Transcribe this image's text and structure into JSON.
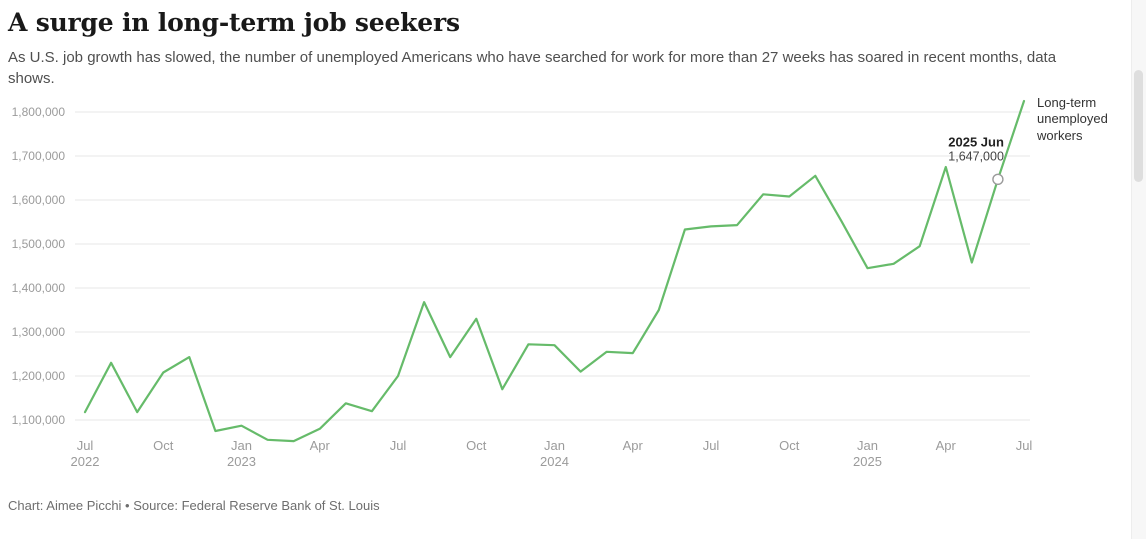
{
  "header": {
    "title": "A surge in long-term job seekers",
    "subtitle": "As U.S. job growth has slowed, the number of unemployed Americans who have searched for work for more than 27 weeks has soared in recent months, data shows."
  },
  "chart_data": {
    "type": "line",
    "title": "A surge in long-term job seekers",
    "series_label": "Long-term unemployed workers",
    "line_color": "#66bb6a",
    "grid_color": "#e7e7e7",
    "axis_label_color": "#9b9b9b",
    "x": [
      "Jul 2022",
      "Aug 2022",
      "Sep 2022",
      "Oct 2022",
      "Nov 2022",
      "Dec 2022",
      "Jan 2023",
      "Feb 2023",
      "Mar 2023",
      "Apr 2023",
      "May 2023",
      "Jun 2023",
      "Jul 2023",
      "Aug 2023",
      "Sep 2023",
      "Oct 2023",
      "Nov 2023",
      "Dec 2023",
      "Jan 2024",
      "Feb 2024",
      "Mar 2024",
      "Apr 2024",
      "May 2024",
      "Jun 2024",
      "Jul 2024",
      "Aug 2024",
      "Sep 2024",
      "Oct 2024",
      "Nov 2024",
      "Dec 2024",
      "Jan 2025",
      "Feb 2025",
      "Mar 2025",
      "Apr 2025",
      "May 2025",
      "Jun 2025",
      "Jul 2025"
    ],
    "values": [
      1118000,
      1230000,
      1118000,
      1208000,
      1243000,
      1075000,
      1087000,
      1055000,
      1052000,
      1080000,
      1138000,
      1120000,
      1200000,
      1368000,
      1243000,
      1330000,
      1170000,
      1272000,
      1270000,
      1210000,
      1255000,
      1252000,
      1350000,
      1533000,
      1540000,
      1543000,
      1613000,
      1608000,
      1655000,
      1552000,
      1445000,
      1455000,
      1495000,
      1675000,
      1458000,
      1647000,
      1825000
    ],
    "yticks": [
      1100000,
      1200000,
      1300000,
      1400000,
      1500000,
      1600000,
      1700000,
      1800000
    ],
    "xticks": [
      {
        "index": 0,
        "month": "Jul",
        "year": "2022"
      },
      {
        "index": 3,
        "month": "Oct",
        "year": ""
      },
      {
        "index": 6,
        "month": "Jan",
        "year": "2023"
      },
      {
        "index": 9,
        "month": "Apr",
        "year": ""
      },
      {
        "index": 12,
        "month": "Jul",
        "year": ""
      },
      {
        "index": 15,
        "month": "Oct",
        "year": ""
      },
      {
        "index": 18,
        "month": "Jan",
        "year": "2024"
      },
      {
        "index": 21,
        "month": "Apr",
        "year": ""
      },
      {
        "index": 24,
        "month": "Jul",
        "year": ""
      },
      {
        "index": 27,
        "month": "Oct",
        "year": ""
      },
      {
        "index": 30,
        "month": "Jan",
        "year": "2025"
      },
      {
        "index": 33,
        "month": "Apr",
        "year": ""
      },
      {
        "index": 36,
        "month": "Jul",
        "year": ""
      }
    ],
    "ylim": [
      1020000,
      1855000
    ],
    "legend_position": "top-right",
    "grid": "horizontal-only",
    "annotation": {
      "label": "2025 Jun",
      "value": "1,647,000",
      "point_index": 35,
      "point_value": 1647000
    }
  },
  "footer": {
    "credit": "Chart: Aimee Picchi • Source: Federal Reserve Bank of St. Louis"
  }
}
